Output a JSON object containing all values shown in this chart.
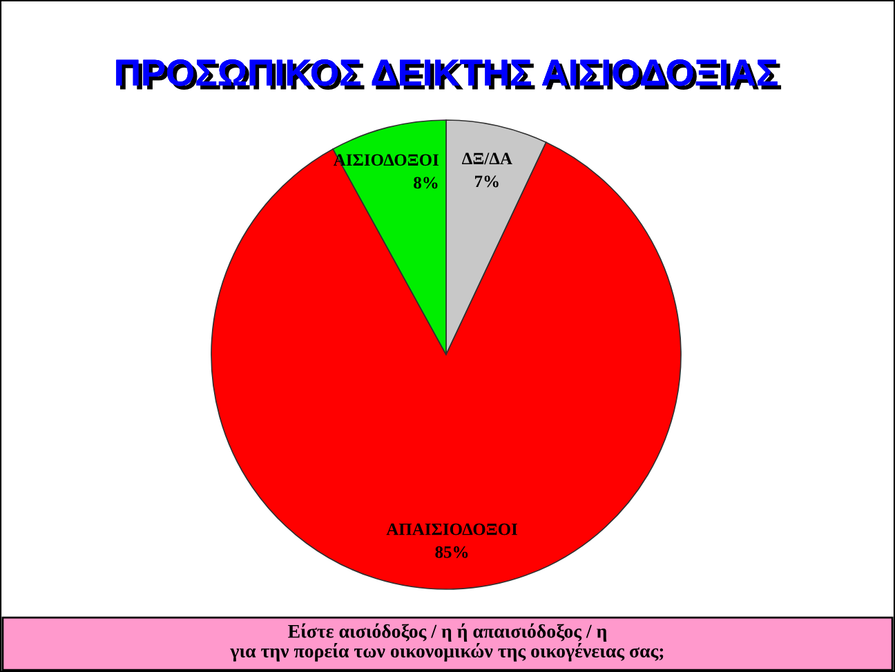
{
  "chart_data": {
    "type": "pie",
    "title": "ΠΡΟΣΩΠΙΚΟΣ ΔΕΙΚΤΗΣ ΑΙΣΙΟΔΟΞΙΑΣ",
    "categories": [
      "ΔΞ/ΔΑ",
      "ΑΠΑΙΣΙΟΔΟΞΟΙ",
      "ΑΙΣΙΟΔΟΞΟΙ"
    ],
    "values": [
      7,
      85,
      8
    ],
    "colors": [
      "#c8c8c8",
      "#ff0000",
      "#00ee00"
    ],
    "value_labels": [
      "7%",
      "85%",
      "8%"
    ],
    "legend": false,
    "annotations": [
      "Είστε αισιόδοξος / η ή απαισιόδοξος / η\nγια την πορεία των οικονομικών της οικογένειας σας;"
    ]
  }
}
